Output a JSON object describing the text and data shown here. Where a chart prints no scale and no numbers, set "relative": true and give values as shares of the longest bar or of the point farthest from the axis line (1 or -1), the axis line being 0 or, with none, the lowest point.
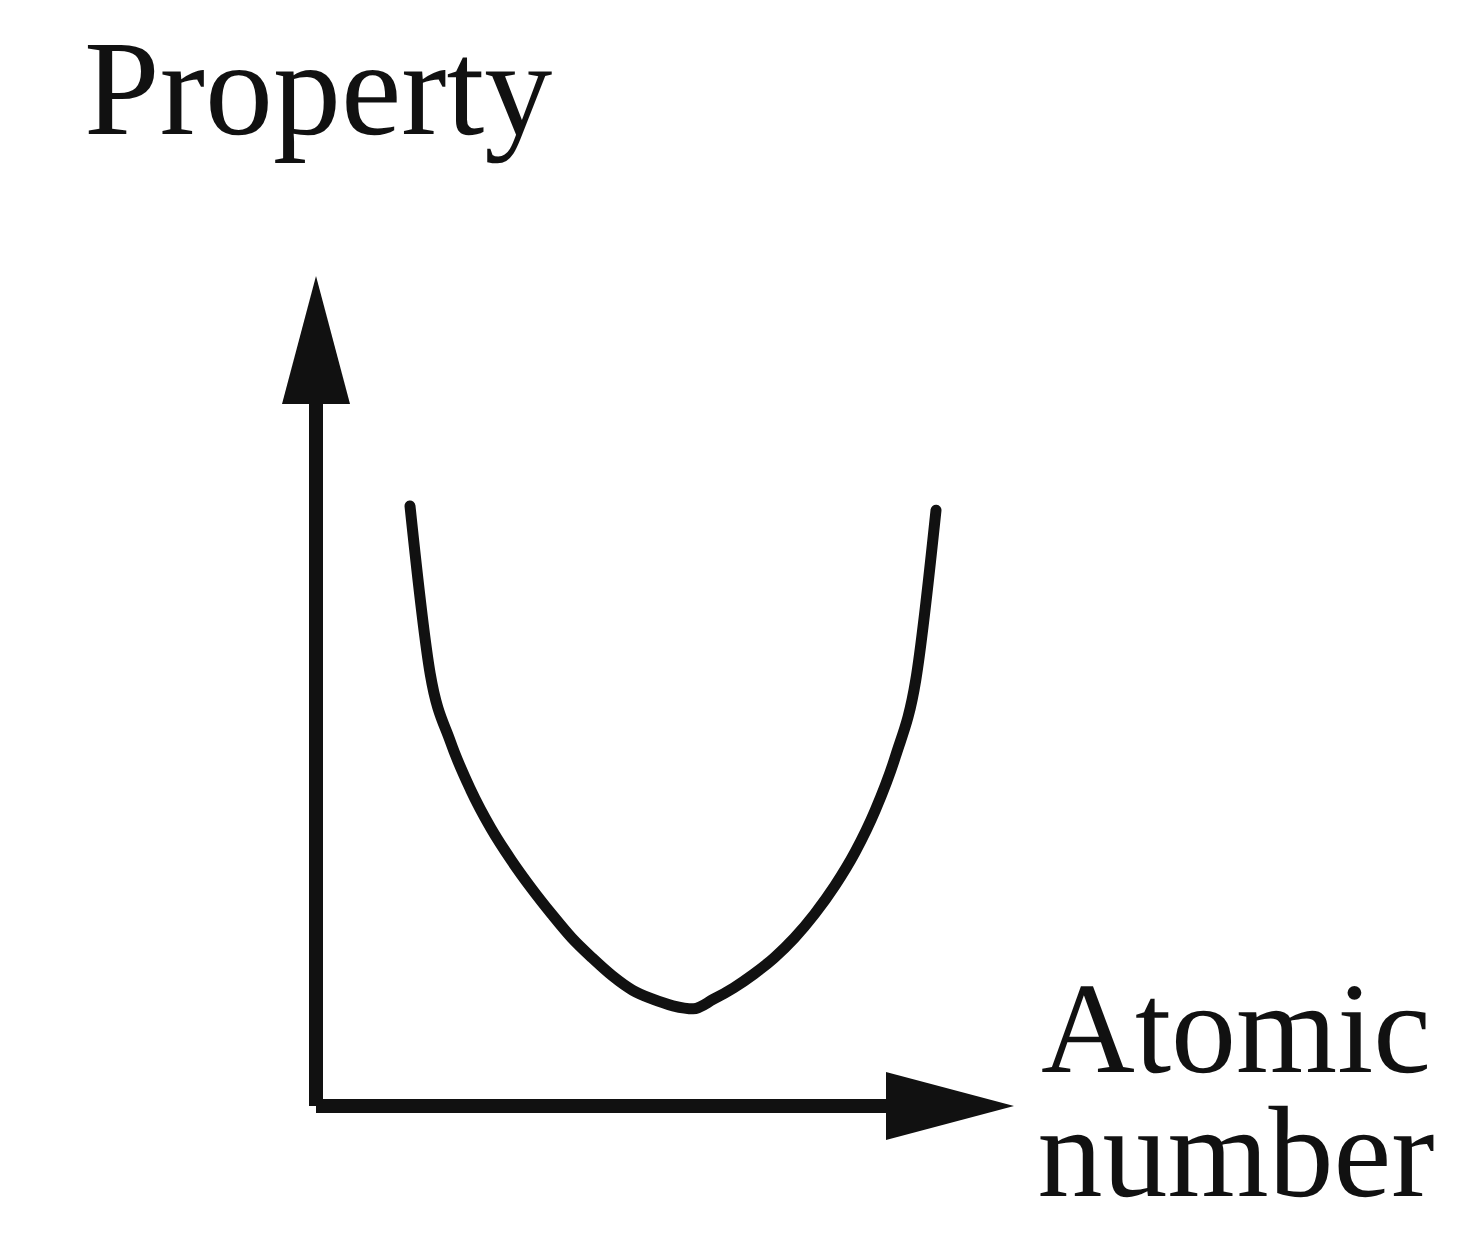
{
  "chart_data": {
    "type": "line",
    "xlabel": "Atomic number",
    "ylabel": "Property",
    "categories": [
      null,
      null,
      null,
      null,
      null,
      null,
      null,
      null,
      null,
      null,
      null,
      null,
      null,
      null,
      null,
      null,
      null,
      null,
      null,
      null,
      null,
      null,
      null,
      null,
      null,
      null,
      null
    ],
    "values": [
      1.0,
      0.72,
      0.607,
      0.527,
      0.463,
      0.41,
      0.363,
      0.32,
      0.28,
      0.247,
      0.217,
      0.193,
      0.178,
      0.167,
      0.162,
      0.178,
      0.197,
      0.22,
      0.247,
      0.28,
      0.32,
      0.367,
      0.423,
      0.493,
      0.583,
      0.71,
      0.993
    ],
    "color": "#111111",
    "relative": true,
    "marker": "none",
    "line_style": "solid"
  }
}
